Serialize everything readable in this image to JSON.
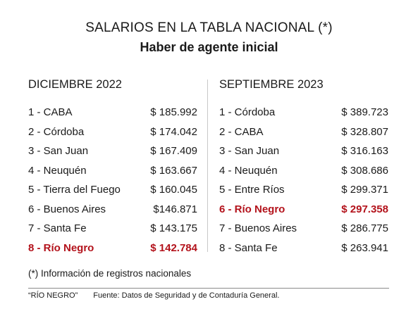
{
  "title": "SALARIOS EN LA TABLA NACIONAL (*)",
  "subtitle": "Haber de agente inicial",
  "left": {
    "heading": "DICIEMBRE 2022",
    "rows": [
      {
        "label": "1 - CABA",
        "value": "$ 185.992"
      },
      {
        "label": "2 - Córdoba",
        "value": "$ 174.042"
      },
      {
        "label": "3 - San Juan",
        "value": "$ 167.409"
      },
      {
        "label": "4 - Neuquén",
        "value": "$ 163.667"
      },
      {
        "label": "5 - Tierra del Fuego",
        "value": "$ 160.045"
      },
      {
        "label": "6 - Buenos Aires",
        "value": "$146.871"
      },
      {
        "label": "7 - Santa Fe",
        "value": "$ 143.175"
      },
      {
        "label": "8 - Río Negro",
        "value": "$ 142.784"
      }
    ]
  },
  "right": {
    "heading": "SEPTIEMBRE 2023",
    "rows": [
      {
        "label": "1 - Córdoba",
        "value": "$ 389.723"
      },
      {
        "label": "2 - CABA",
        "value": "$ 328.807"
      },
      {
        "label": "3 - San Juan",
        "value": "$ 316.163"
      },
      {
        "label": "4 - Neuquén",
        "value": "$ 308.686"
      },
      {
        "label": "5 - Entre Ríos",
        "value": "$ 299.371"
      },
      {
        "label": "6 - Río Negro",
        "value": "$ 297.358"
      },
      {
        "label": "7 - Buenos Aires",
        "value": "$ 286.775"
      },
      {
        "label": "8 - Santa Fe",
        "value": "$ 263.941"
      }
    ]
  },
  "highlight_color": "#b3121b",
  "note": "(*) Información de registros nacionales",
  "footer": {
    "credit": "“RÍO NEGRO”",
    "source": "Fuente: Datos de Seguridad y de Contaduría General."
  }
}
